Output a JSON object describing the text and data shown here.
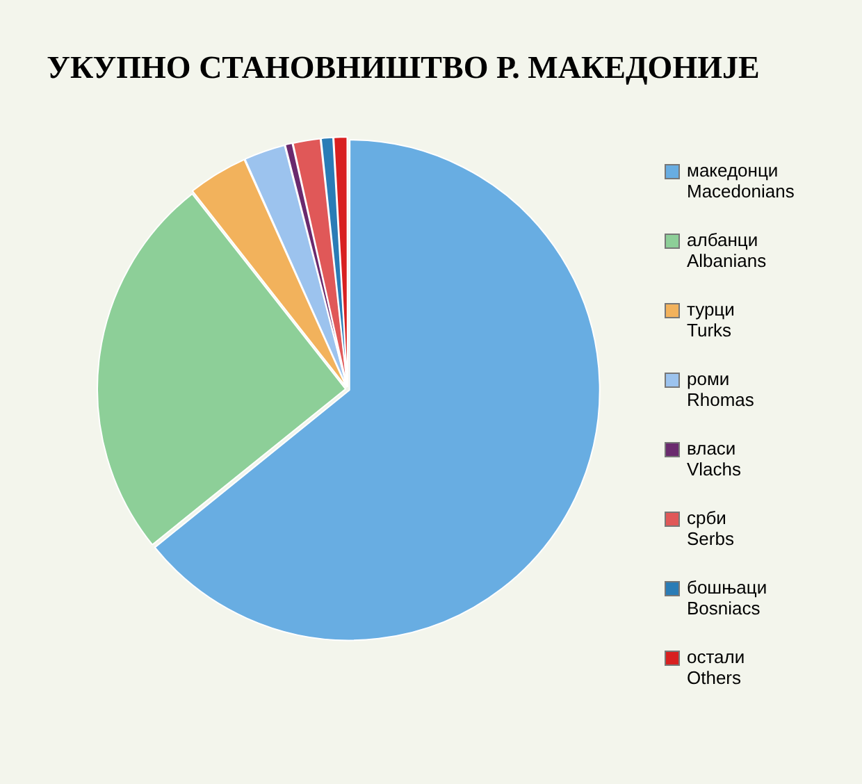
{
  "chart_data": {
    "type": "pie",
    "title": "УКУПНО СТАНОВНИШТВО Р. МАКЕДОНИЈЕ",
    "categories": [
      "македонци\nMacedonians",
      "албанци\nAlbanians",
      "турци\nTurks",
      "роми\nRhomas",
      "власи\nVlachs",
      "срби\nSerbs",
      "бошњаци\nBosniacs",
      "остали\nOthers"
    ],
    "values": [
      64.2,
      25.2,
      3.9,
      2.7,
      0.5,
      1.8,
      0.8,
      0.9
    ],
    "colors": [
      "#68ade2",
      "#8dcf98",
      "#f2b25c",
      "#9cc3ee",
      "#6a2a6e",
      "#e05858",
      "#2a7cb6",
      "#d82020"
    ],
    "legend": "right"
  }
}
